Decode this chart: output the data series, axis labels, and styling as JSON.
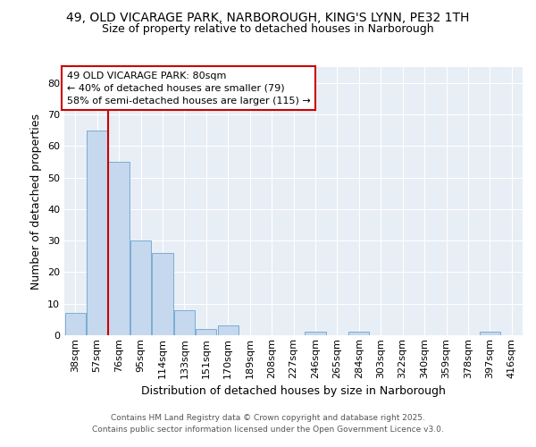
{
  "title_line1": "49, OLD VICARAGE PARK, NARBOROUGH, KING'S LYNN, PE32 1TH",
  "title_line2": "Size of property relative to detached houses in Narborough",
  "categories": [
    "38sqm",
    "57sqm",
    "76sqm",
    "95sqm",
    "114sqm",
    "133sqm",
    "151sqm",
    "170sqm",
    "189sqm",
    "208sqm",
    "227sqm",
    "246sqm",
    "265sqm",
    "284sqm",
    "303sqm",
    "322sqm",
    "340sqm",
    "359sqm",
    "378sqm",
    "397sqm",
    "416sqm"
  ],
  "values": [
    7,
    65,
    55,
    30,
    26,
    8,
    2,
    3,
    0,
    0,
    0,
    1,
    0,
    1,
    0,
    0,
    0,
    0,
    0,
    1,
    0
  ],
  "bar_color": "#c5d8ee",
  "bar_edge_color": "#7aadd4",
  "red_line_x": 1.5,
  "xlabel": "Distribution of detached houses by size in Narborough",
  "ylabel": "Number of detached properties",
  "ylim": [
    0,
    85
  ],
  "yticks": [
    0,
    10,
    20,
    30,
    40,
    50,
    60,
    70,
    80
  ],
  "annotation_text": "49 OLD VICARAGE PARK: 80sqm\n← 40% of detached houses are smaller (79)\n58% of semi-detached houses are larger (115) →",
  "annotation_box_facecolor": "#ffffff",
  "annotation_box_edgecolor": "#cc0000",
  "footer_line1": "Contains HM Land Registry data © Crown copyright and database right 2025.",
  "footer_line2": "Contains public sector information licensed under the Open Government Licence v3.0.",
  "plot_bg_color": "#e8eef5",
  "fig_bg_color": "#ffffff",
  "grid_color": "#ffffff",
  "title_fontsize": 10,
  "subtitle_fontsize": 9,
  "axis_label_fontsize": 9,
  "tick_fontsize": 8,
  "annotation_fontsize": 8,
  "footer_fontsize": 6.5
}
